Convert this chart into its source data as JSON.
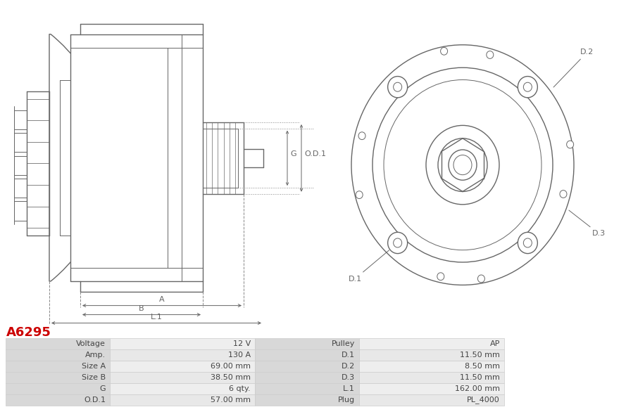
{
  "title": "A6295",
  "title_color": "#cc0000",
  "bg_color": "#ffffff",
  "table_rows": [
    [
      "Voltage",
      "12 V",
      "Pulley",
      "AP"
    ],
    [
      "Amp.",
      "130 A",
      "D.1",
      "11.50 mm"
    ],
    [
      "Size A",
      "69.00 mm",
      "D.2",
      "8.50 mm"
    ],
    [
      "Size B",
      "38.50 mm",
      "D.3",
      "11.50 mm"
    ],
    [
      "G",
      "6 qty.",
      "L.1",
      "162.00 mm"
    ],
    [
      "O.D.1",
      "57.00 mm",
      "Plug",
      "PL_4000"
    ]
  ],
  "line_color": "#666666",
  "dim_color": "#555555",
  "label_fontsize": 7.5
}
